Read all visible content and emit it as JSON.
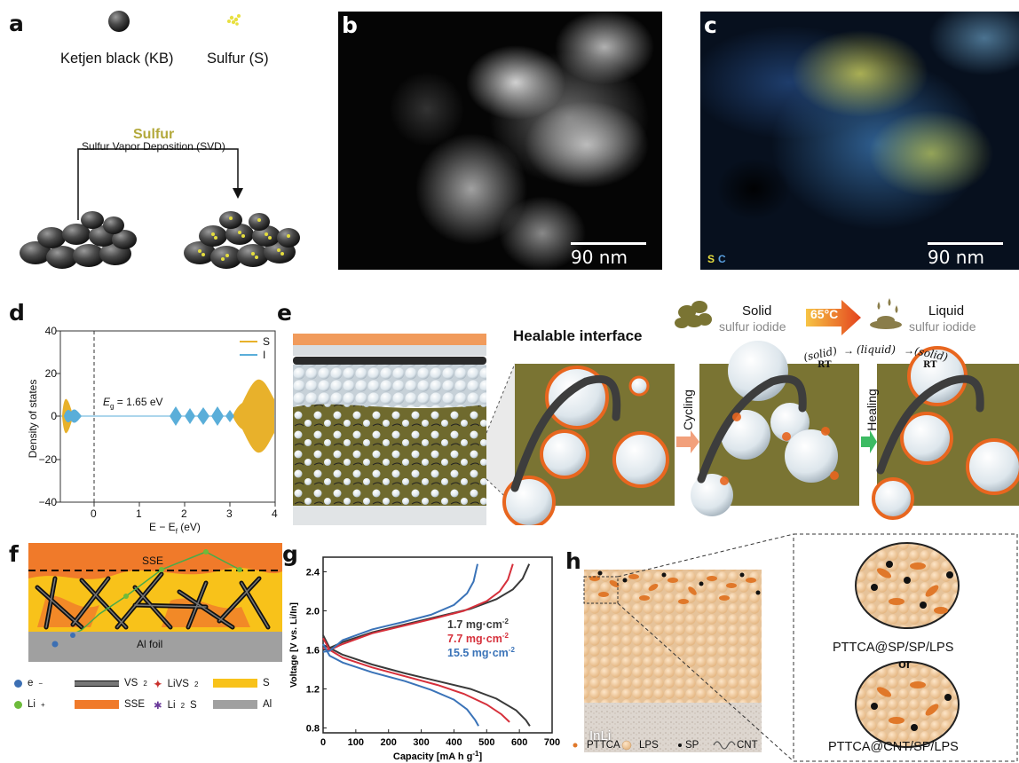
{
  "panels": {
    "a": "a",
    "b": "b",
    "c": "c",
    "d": "d",
    "e": "e",
    "f": "f",
    "g": "g",
    "h": "h"
  },
  "panel_a": {
    "kb_label": "Ketjen black (KB)",
    "s_label": "Sulfur (S)",
    "sulfur_word": "Sulfur",
    "svd_label": "Sulfur Vapor Deposition (SVD)"
  },
  "panel_b": {
    "scale": "90 nm"
  },
  "panel_c": {
    "scale": "90 nm",
    "legend_s": "S",
    "legend_c": "C"
  },
  "panel_d": {
    "ylabel": "Density of states",
    "xlabel": "E − E",
    "xlabel_sub": "f",
    "xlabel_unit": " (eV)",
    "gap_label": "E",
    "gap_sub": "g",
    "gap_value": " = 1.65 eV",
    "legend": [
      "S",
      "I"
    ],
    "colors": {
      "S": "#e8b12b",
      "I": "#5aaed9"
    },
    "yticks": [
      "40",
      "20",
      "0",
      "−20",
      "−40"
    ],
    "xticks": [
      "0",
      "1",
      "2",
      "3",
      "4"
    ]
  },
  "panel_e": {
    "title": "Healable interface",
    "solid": "Solid",
    "solid_sub": "sulfur iodide",
    "temp": "65°C",
    "liquid": "Liquid",
    "liquid_sub": "sulfur iodide",
    "eq_solid": "(solid)",
    "eq_rt": "RT",
    "eq_arrow": "→",
    "eq_liquid": "(liquid)",
    "eq_solid2": "(solid)",
    "eq_rt2": "RT",
    "cycling": "Cycling",
    "healing": "Healing"
  },
  "panel_f": {
    "sse": "SSE",
    "al": "Al foil",
    "legend": [
      {
        "sym": "e",
        "sup": "−",
        "name": "e"
      },
      {
        "sym": "li",
        "sup": "+",
        "name": "Li"
      },
      {
        "name": "VS",
        "sub": "2"
      },
      {
        "name": "SSE"
      },
      {
        "name": "LiVS",
        "sub": "2"
      },
      {
        "name": "Li",
        "sub": "2",
        "tail": "S"
      },
      {
        "name": "S"
      },
      {
        "name": "Al"
      }
    ]
  },
  "panel_h": {
    "inli": "InLi",
    "label1": "PTTCA@SP/SP/LPS",
    "or": "or",
    "label2": "PTTCA@CNT/SP/LPS",
    "legend": [
      "PTTCA",
      "LPS",
      "SP",
      "CNT"
    ]
  },
  "chart_data": {
    "type": "line",
    "ylabel": "Voltage [V vs. Li/In]",
    "xlabel": "Capacity [mA h g",
    "xlabel_sup": "-1",
    "xlabel_end": "]",
    "xlim": [
      0,
      700
    ],
    "ylim": [
      0.75,
      2.55
    ],
    "xticks": [
      0,
      100,
      200,
      300,
      400,
      500,
      600,
      700
    ],
    "yticks": [
      0.8,
      1.2,
      1.6,
      2.0,
      2.4
    ],
    "series": [
      {
        "name": "1.7 mg·cm",
        "sup": "-2",
        "color": "#3a3a3a",
        "discharge": [
          [
            0,
            1.75
          ],
          [
            20,
            1.62
          ],
          [
            60,
            1.55
          ],
          [
            150,
            1.45
          ],
          [
            250,
            1.36
          ],
          [
            350,
            1.28
          ],
          [
            450,
            1.2
          ],
          [
            530,
            1.1
          ],
          [
            590,
            0.98
          ],
          [
            620,
            0.88
          ],
          [
            632,
            0.82
          ]
        ],
        "charge": [
          [
            0,
            1.65
          ],
          [
            20,
            1.62
          ],
          [
            60,
            1.68
          ],
          [
            150,
            1.78
          ],
          [
            250,
            1.86
          ],
          [
            350,
            1.94
          ],
          [
            450,
            2.02
          ],
          [
            530,
            2.12
          ],
          [
            580,
            2.22
          ],
          [
            610,
            2.33
          ],
          [
            630,
            2.48
          ]
        ]
      },
      {
        "name": "7.7 mg·cm",
        "sup": "-2",
        "color": "#d6303b",
        "discharge": [
          [
            0,
            1.72
          ],
          [
            20,
            1.6
          ],
          [
            60,
            1.52
          ],
          [
            150,
            1.42
          ],
          [
            250,
            1.33
          ],
          [
            350,
            1.24
          ],
          [
            430,
            1.15
          ],
          [
            500,
            1.04
          ],
          [
            545,
            0.94
          ],
          [
            570,
            0.86
          ]
        ],
        "charge": [
          [
            0,
            1.62
          ],
          [
            20,
            1.6
          ],
          [
            60,
            1.66
          ],
          [
            150,
            1.77
          ],
          [
            250,
            1.85
          ],
          [
            350,
            1.93
          ],
          [
            430,
            2.0
          ],
          [
            500,
            2.1
          ],
          [
            540,
            2.2
          ],
          [
            565,
            2.32
          ],
          [
            580,
            2.48
          ]
        ]
      },
      {
        "name": "15.5 mg·cm",
        "sup": "-2",
        "color": "#3a73b8",
        "discharge": [
          [
            0,
            1.66
          ],
          [
            20,
            1.54
          ],
          [
            60,
            1.47
          ],
          [
            150,
            1.37
          ],
          [
            250,
            1.28
          ],
          [
            330,
            1.19
          ],
          [
            400,
            1.09
          ],
          [
            440,
            0.99
          ],
          [
            465,
            0.88
          ],
          [
            475,
            0.82
          ]
        ],
        "charge": [
          [
            0,
            1.58
          ],
          [
            20,
            1.59
          ],
          [
            60,
            1.7
          ],
          [
            150,
            1.81
          ],
          [
            250,
            1.89
          ],
          [
            330,
            1.96
          ],
          [
            400,
            2.06
          ],
          [
            440,
            2.18
          ],
          [
            460,
            2.3
          ],
          [
            472,
            2.48
          ]
        ]
      }
    ]
  }
}
